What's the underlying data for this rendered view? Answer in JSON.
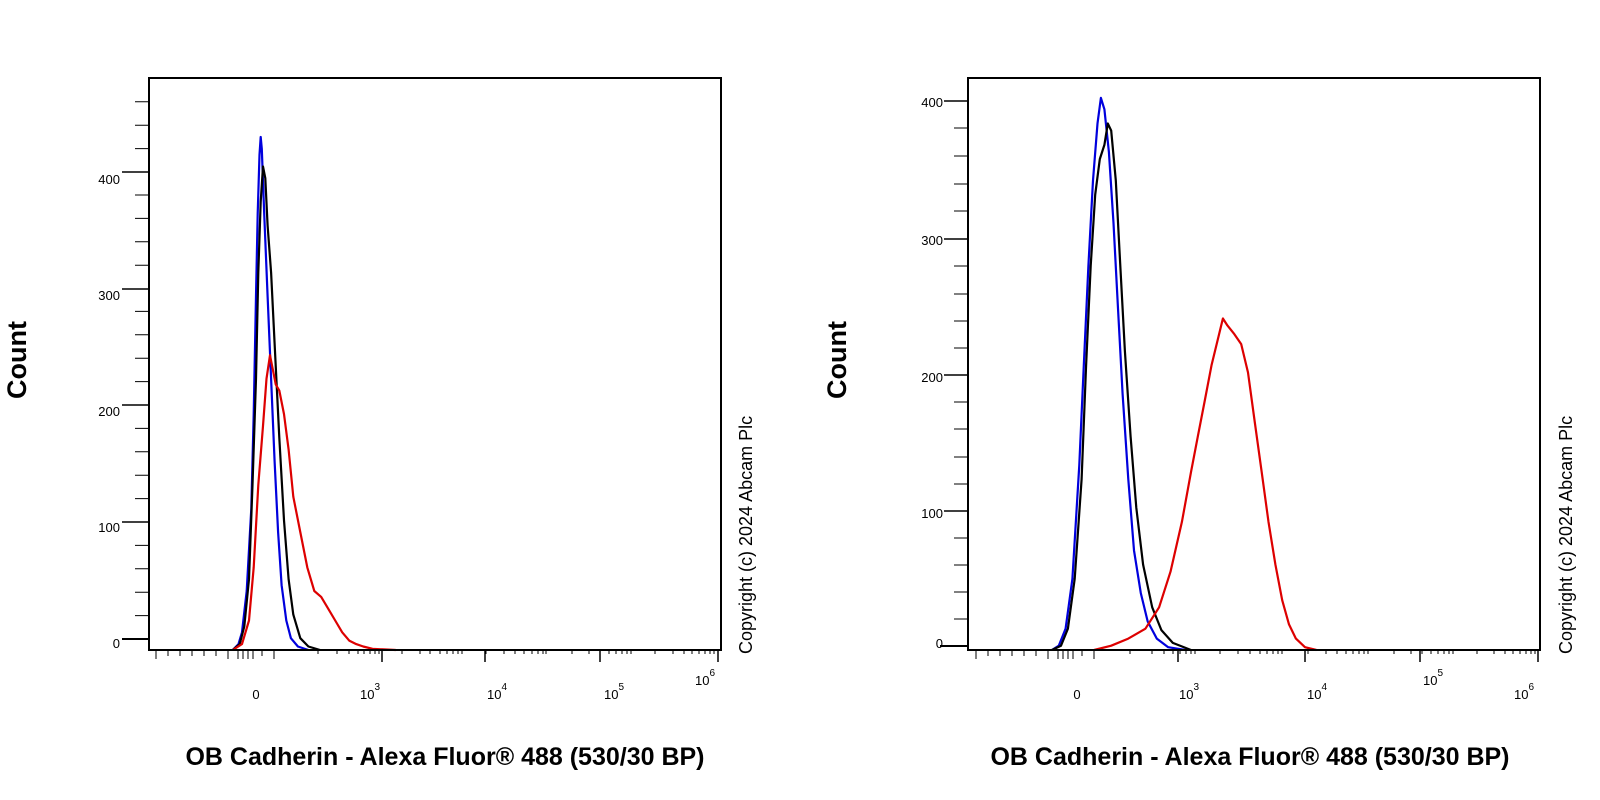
{
  "chart_data": [
    {
      "type": "line",
      "xlabel": "OB Cadherin - Alexa Fluor® 488 (530/30 BP)",
      "ylabel": "Count",
      "x_scale": "biexponential",
      "x_ticks": [
        {
          "label": "0"
        },
        {
          "base": "10",
          "exp": "3"
        },
        {
          "base": "10",
          "exp": "4"
        },
        {
          "base": "10",
          "exp": "5"
        },
        {
          "base": "10",
          "exp": "6"
        }
      ],
      "y_ticks": [
        "0",
        "100",
        "200",
        "300",
        "400"
      ],
      "ylim": [
        0,
        485
      ],
      "copyright": "Copyright (c) 2024 Abcam Plc",
      "series": [
        {
          "color": "#0000dd",
          "values": [
            [
              -0.2,
              0
            ],
            [
              -0.15,
              5
            ],
            [
              -0.12,
              15
            ],
            [
              -0.08,
              50
            ],
            [
              -0.04,
              120
            ],
            [
              -0.02,
              200
            ],
            [
              0,
              300
            ],
            [
              0.015,
              370
            ],
            [
              0.03,
              420
            ],
            [
              0.04,
              435
            ],
            [
              0.05,
              425
            ],
            [
              0.07,
              370
            ],
            [
              0.1,
              300
            ],
            [
              0.13,
              230
            ],
            [
              0.16,
              160
            ],
            [
              0.19,
              100
            ],
            [
              0.22,
              55
            ],
            [
              0.26,
              25
            ],
            [
              0.3,
              10
            ],
            [
              0.36,
              3
            ],
            [
              0.45,
              0
            ]
          ]
        },
        {
          "color": "#000000",
          "values": [
            [
              -0.2,
              0
            ],
            [
              -0.14,
              5
            ],
            [
              -0.1,
              20
            ],
            [
              -0.06,
              60
            ],
            [
              -0.03,
              140
            ],
            [
              0,
              230
            ],
            [
              0.02,
              320
            ],
            [
              0.04,
              380
            ],
            [
              0.06,
              410
            ],
            [
              0.08,
              400
            ],
            [
              0.1,
              360
            ],
            [
              0.13,
              320
            ],
            [
              0.16,
              260
            ],
            [
              0.2,
              180
            ],
            [
              0.24,
              110
            ],
            [
              0.28,
              60
            ],
            [
              0.32,
              30
            ],
            [
              0.38,
              10
            ],
            [
              0.45,
              3
            ],
            [
              0.55,
              0
            ]
          ]
        },
        {
          "color": "#dd0000",
          "values": [
            [
              -0.2,
              0
            ],
            [
              -0.12,
              5
            ],
            [
              -0.06,
              25
            ],
            [
              -0.02,
              70
            ],
            [
              0.02,
              140
            ],
            [
              0.06,
              190
            ],
            [
              0.09,
              230
            ],
            [
              0.12,
              250
            ],
            [
              0.14,
              240
            ],
            [
              0.17,
              225
            ],
            [
              0.2,
              220
            ],
            [
              0.24,
              200
            ],
            [
              0.28,
              170
            ],
            [
              0.32,
              130
            ],
            [
              0.38,
              100
            ],
            [
              0.44,
              70
            ],
            [
              0.5,
              50
            ],
            [
              0.56,
              45
            ],
            [
              0.62,
              35
            ],
            [
              0.68,
              25
            ],
            [
              0.74,
              15
            ],
            [
              0.8,
              8
            ],
            [
              0.86,
              5
            ],
            [
              0.92,
              3
            ],
            [
              1.0,
              1
            ],
            [
              1.2,
              0
            ]
          ]
        }
      ]
    },
    {
      "type": "line",
      "xlabel": "OB Cadherin - Alexa Fluor® 488 (530/30 BP)",
      "ylabel": "Count",
      "x_scale": "biexponential",
      "x_ticks": [
        {
          "label": "0"
        },
        {
          "base": "10",
          "exp": "3"
        },
        {
          "base": "10",
          "exp": "4"
        },
        {
          "base": "10",
          "exp": "5"
        },
        {
          "base": "10",
          "exp": "6"
        }
      ],
      "y_ticks": [
        "0",
        "100",
        "200",
        "300",
        "400"
      ],
      "ylim": [
        0,
        402
      ],
      "copyright": "Copyright (c) 2024 Abcam Plc",
      "series": [
        {
          "color": "#0000dd",
          "values": [
            [
              -0.22,
              0
            ],
            [
              -0.16,
              3
            ],
            [
              -0.1,
              15
            ],
            [
              -0.04,
              50
            ],
            [
              0.02,
              130
            ],
            [
              0.06,
              200
            ],
            [
              0.1,
              270
            ],
            [
              0.14,
              330
            ],
            [
              0.18,
              370
            ],
            [
              0.21,
              388
            ],
            [
              0.24,
              380
            ],
            [
              0.28,
              350
            ],
            [
              0.32,
              300
            ],
            [
              0.36,
              240
            ],
            [
              0.4,
              180
            ],
            [
              0.45,
              120
            ],
            [
              0.5,
              70
            ],
            [
              0.56,
              40
            ],
            [
              0.62,
              20
            ],
            [
              0.7,
              8
            ],
            [
              0.8,
              2
            ],
            [
              0.95,
              0
            ]
          ]
        },
        {
          "color": "#000000",
          "values": [
            [
              -0.22,
              0
            ],
            [
              -0.14,
              3
            ],
            [
              -0.08,
              15
            ],
            [
              -0.02,
              50
            ],
            [
              0.04,
              120
            ],
            [
              0.08,
              200
            ],
            [
              0.12,
              270
            ],
            [
              0.16,
              320
            ],
            [
              0.2,
              345
            ],
            [
              0.24,
              355
            ],
            [
              0.27,
              370
            ],
            [
              0.3,
              365
            ],
            [
              0.34,
              330
            ],
            [
              0.38,
              270
            ],
            [
              0.42,
              210
            ],
            [
              0.47,
              150
            ],
            [
              0.52,
              100
            ],
            [
              0.58,
              60
            ],
            [
              0.66,
              30
            ],
            [
              0.74,
              14
            ],
            [
              0.84,
              5
            ],
            [
              1.0,
              0
            ]
          ]
        },
        {
          "color": "#dd0000",
          "values": [
            [
              0.15,
              0
            ],
            [
              0.3,
              3
            ],
            [
              0.45,
              8
            ],
            [
              0.6,
              15
            ],
            [
              0.72,
              30
            ],
            [
              0.82,
              55
            ],
            [
              0.92,
              90
            ],
            [
              1.0,
              125
            ],
            [
              1.06,
              150
            ],
            [
              1.12,
              175
            ],
            [
              1.18,
              200
            ],
            [
              1.24,
              220
            ],
            [
              1.28,
              233
            ],
            [
              1.32,
              228
            ],
            [
              1.38,
              222
            ],
            [
              1.44,
              215
            ],
            [
              1.5,
              195
            ],
            [
              1.56,
              160
            ],
            [
              1.62,
              125
            ],
            [
              1.68,
              90
            ],
            [
              1.74,
              60
            ],
            [
              1.8,
              35
            ],
            [
              1.86,
              18
            ],
            [
              1.92,
              8
            ],
            [
              2.0,
              2
            ],
            [
              2.1,
              0
            ]
          ]
        }
      ]
    }
  ]
}
